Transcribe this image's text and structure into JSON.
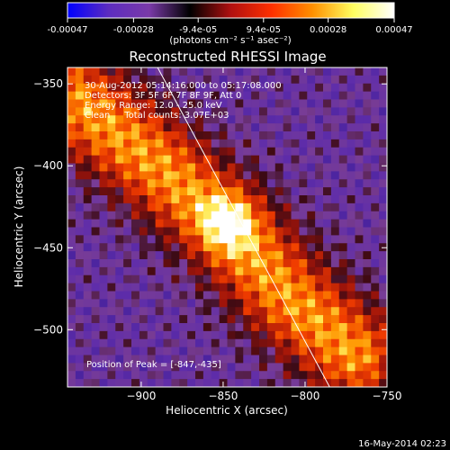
{
  "colorbar": {
    "tick_labels": [
      "-0.00047",
      "-0.00028",
      "-9.4e-05",
      "9.4e-05",
      "0.00028",
      "0.00047"
    ],
    "tick_values": [
      -0.00047,
      -0.00028,
      -9.4e-05,
      9.4e-05,
      0.00028,
      0.00047
    ],
    "min": -0.00047,
    "max": 0.00047,
    "units": "(photons cm⁻² s⁻¹ asec⁻²)",
    "colors": [
      "#0000ff",
      "#5c2cc0",
      "#7a3aa8",
      "#000000",
      "#b01010",
      "#ff3000",
      "#ff9000",
      "#ffff60",
      "#ffffff"
    ]
  },
  "chart_data": {
    "type": "heatmap",
    "title": "Reconstructed RHESSI Image",
    "xlabel": "Heliocentric X (arcsec)",
    "ylabel": "Heliocentric Y (arcsec)",
    "xlim": [
      -945,
      -750
    ],
    "ylim": [
      -535,
      -340
    ],
    "x_ticks": [
      -900,
      -850,
      -800,
      -750
    ],
    "x_tick_labels": [
      "−900",
      "−850",
      "−800",
      "−750"
    ],
    "y_ticks": [
      -500,
      -450,
      -400,
      -350
    ],
    "y_tick_labels": [
      "−500",
      "−450",
      "−400",
      "−350"
    ],
    "annotations": [
      "30-Aug-2012 05:14:16.000 to 05:17:08.000",
      "Detectors: 3F 5F 6F 7F 8F 9F, Att 0",
      "Energy Range: 12.0 - 25.0 keV",
      "Clean     Total counts: 3.07E+03"
    ],
    "peak_label": "Position of Peak = [-847,-435]",
    "peak_position": [
      -847,
      -435
    ],
    "limb_line": [
      [
        -890,
        -340
      ],
      [
        -785,
        -535
      ]
    ],
    "emission_ridge": [
      [
        -940,
        -360
      ],
      [
        -890,
        -400
      ],
      [
        -850,
        -435
      ],
      [
        -810,
        -480
      ],
      [
        -770,
        -515
      ]
    ],
    "grid": false
  },
  "footer": {
    "date": "16-May-2014 02:23"
  }
}
